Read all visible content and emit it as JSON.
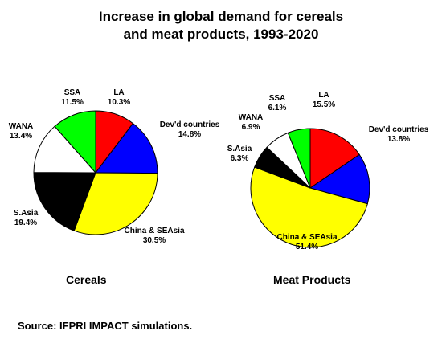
{
  "title_lines": [
    "Increase in global demand for cereals",
    "and meat products, 1993-2020"
  ],
  "source": "Source:  IFPRI IMPACT simulations.",
  "chart_data": [
    {
      "type": "pie",
      "caption": "Cereals",
      "unit": "%",
      "slices": [
        {
          "name": "LA",
          "value": 10.3,
          "color": "#ff0000"
        },
        {
          "name": "Dev'd countries",
          "value": 14.8,
          "color": "#0000ff"
        },
        {
          "name": "China & SEAsia",
          "value": 30.5,
          "color": "#ffff00"
        },
        {
          "name": "S.Asia",
          "value": 19.4,
          "color": "#000000"
        },
        {
          "name": "WANA",
          "value": 13.4,
          "color": "#ffffff"
        },
        {
          "name": "SSA",
          "value": 11.5,
          "color": "#00ff00"
        }
      ]
    },
    {
      "type": "pie",
      "caption": "Meat Products",
      "unit": "%",
      "slices": [
        {
          "name": "LA",
          "value": 15.5,
          "color": "#ff0000"
        },
        {
          "name": "Dev'd countries",
          "value": 13.8,
          "color": "#0000ff"
        },
        {
          "name": "China & SEAsia",
          "value": 51.4,
          "color": "#ffff00"
        },
        {
          "name": "S.Asia",
          "value": 6.3,
          "color": "#000000"
        },
        {
          "name": "WANA",
          "value": 6.9,
          "color": "#ffffff"
        },
        {
          "name": "SSA",
          "value": 6.1,
          "color": "#00ff00"
        }
      ]
    }
  ]
}
